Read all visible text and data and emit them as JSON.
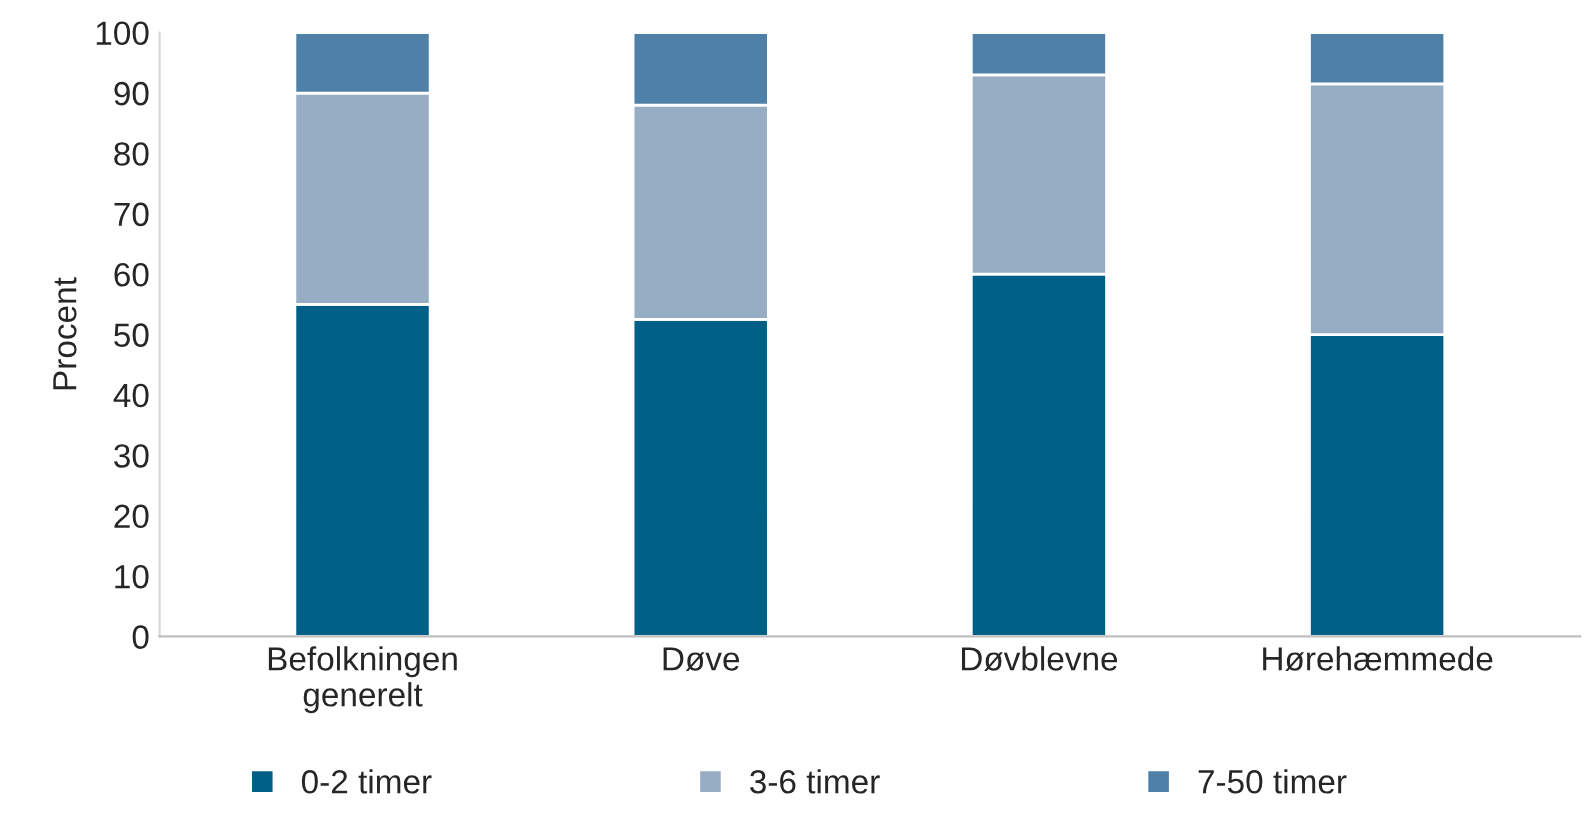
{
  "chart_data": {
    "type": "bar",
    "stacked": true,
    "ylabel": "Procent",
    "categories": [
      "Befolkningen\ngenerelt",
      "Døve",
      "Døvblevne",
      "Hørehæmmede"
    ],
    "series": [
      {
        "name": "0-2 timer",
        "color": "#005f87",
        "values": [
          55,
          52.5,
          60,
          50
        ]
      },
      {
        "name": "3-6 timer",
        "color": "#96adc4",
        "values": [
          35,
          35.5,
          33,
          41.5
        ]
      },
      {
        "name": "7-50 timer",
        "color": "#4f80a8",
        "values": [
          10,
          12,
          7,
          8.5
        ]
      }
    ],
    "ylim": [
      0,
      100
    ],
    "yticks": [
      0,
      10,
      20,
      30,
      40,
      50,
      60,
      70,
      80,
      90,
      100
    ],
    "grid": false,
    "legend": "bottom"
  }
}
